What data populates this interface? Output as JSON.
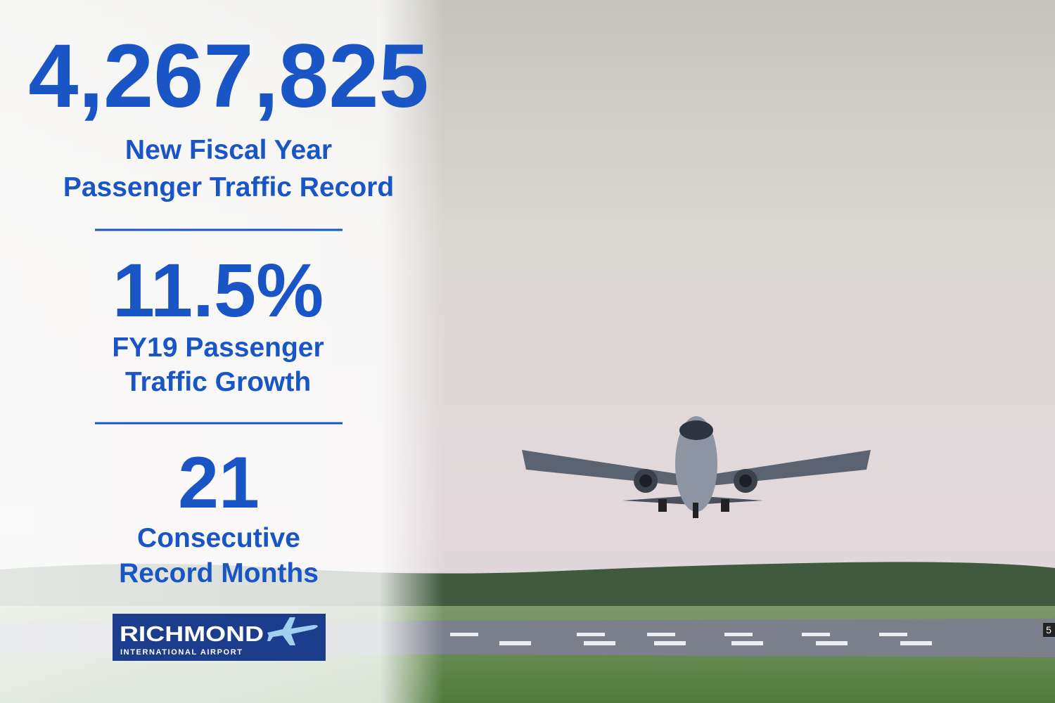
{
  "stats": [
    {
      "value": "4,267,825",
      "label": [
        "New Fiscal Year",
        "Passenger Traffic Record"
      ]
    },
    {
      "value": "11.5%",
      "label": [
        "FY19 Passenger",
        "Traffic Growth"
      ]
    },
    {
      "value": "21",
      "label": [
        "Consecutive",
        "Record Months"
      ]
    }
  ],
  "logo": {
    "name": "RICHMOND",
    "subtitle": "INTERNATIONAL AIRPORT"
  },
  "runway": {
    "marking": "5"
  }
}
